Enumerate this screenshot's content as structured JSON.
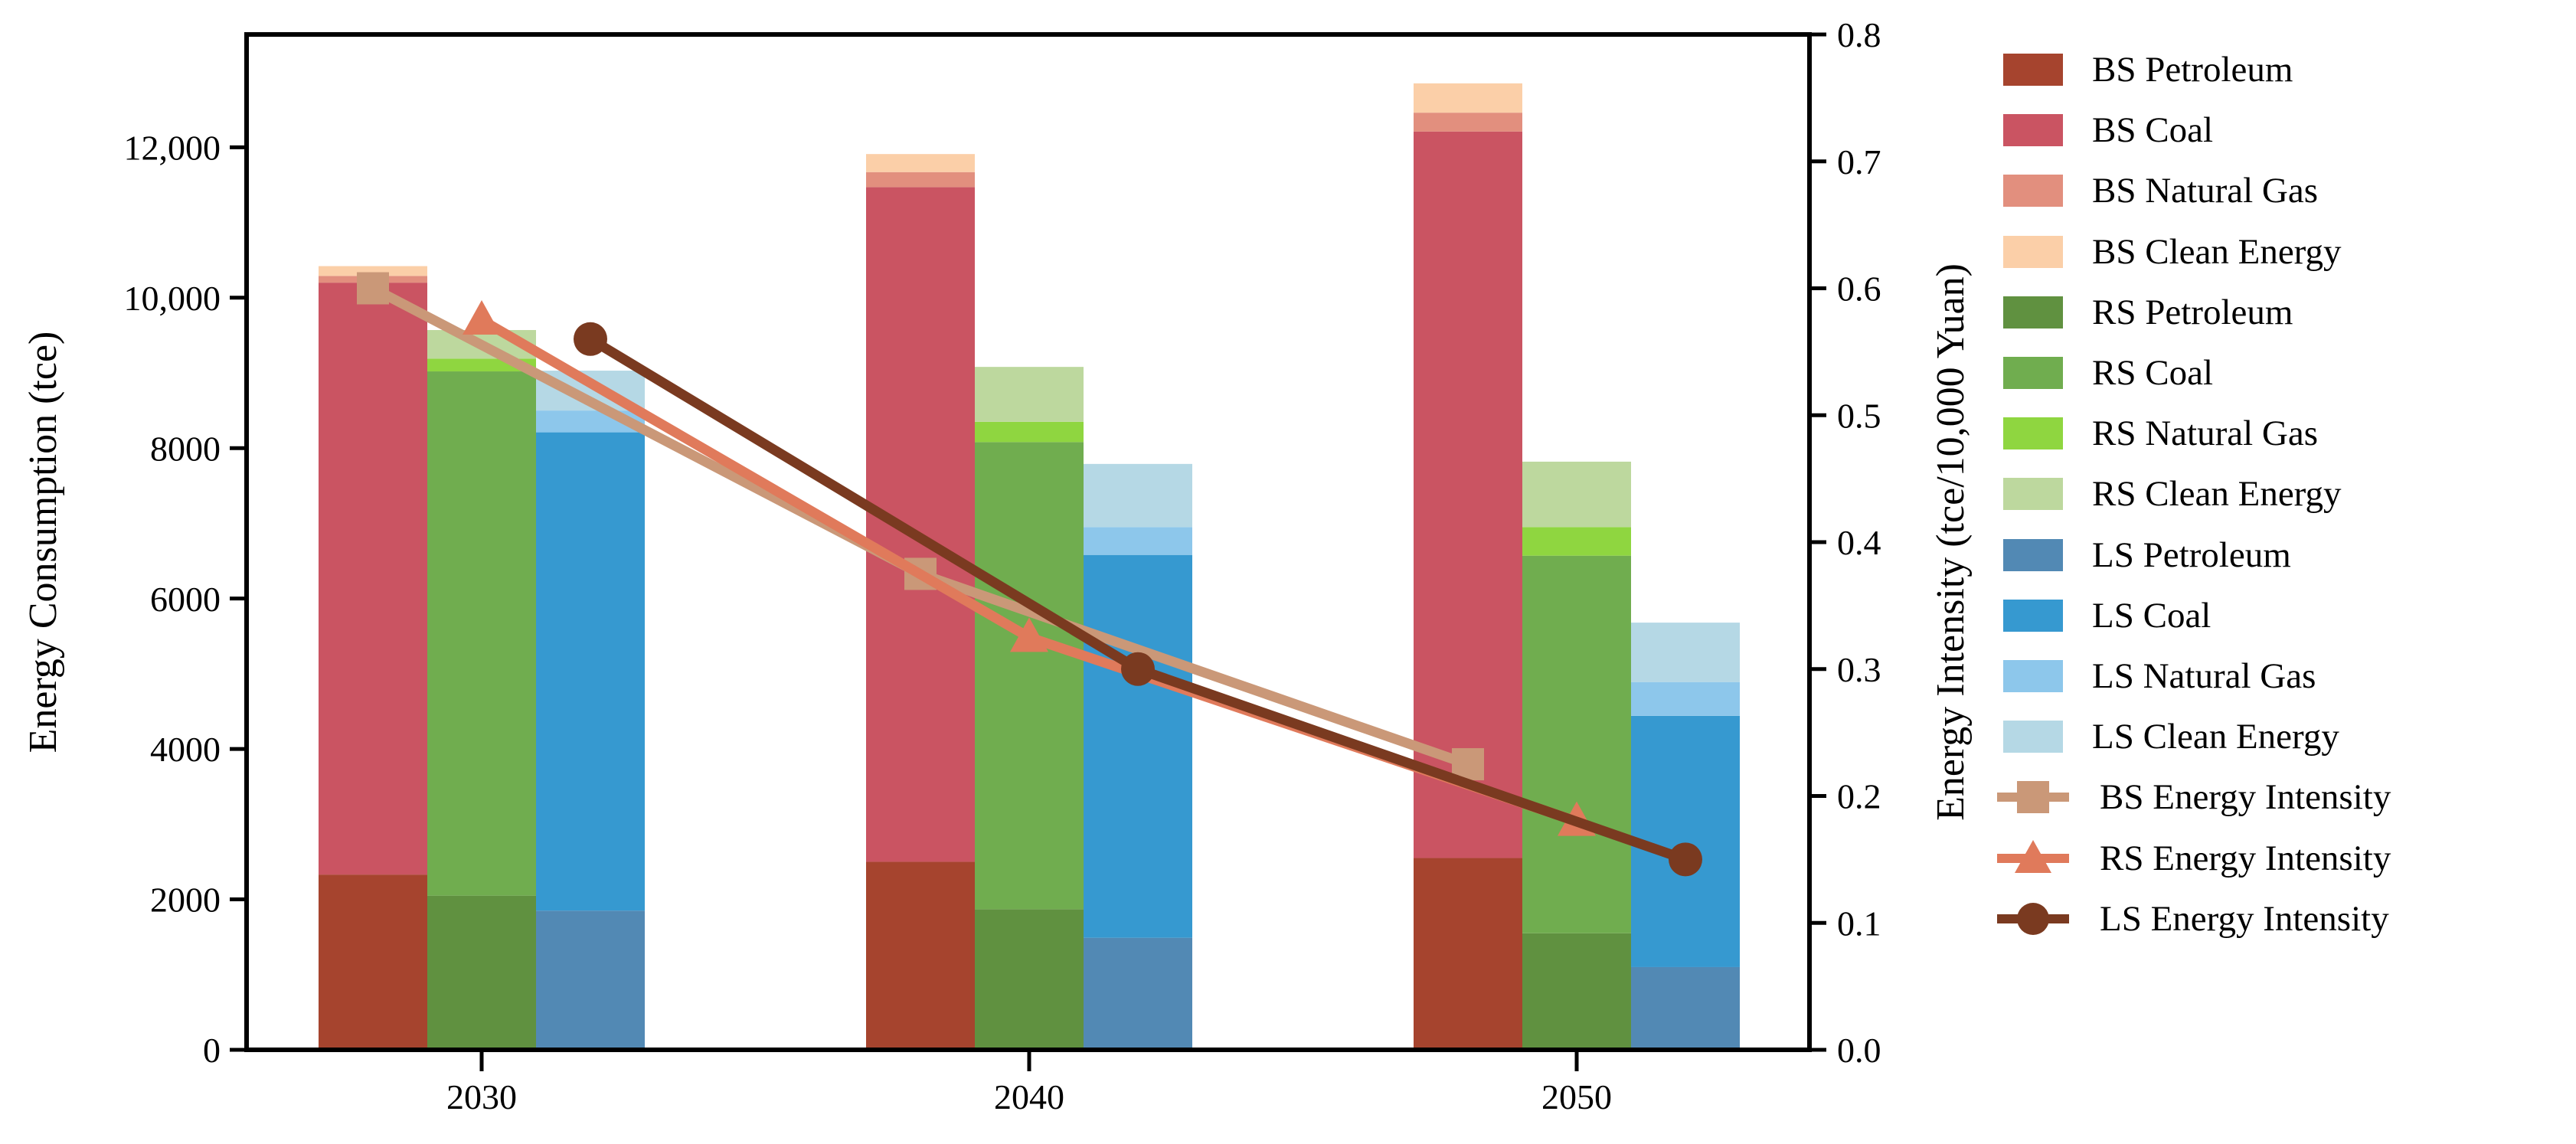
{
  "figure_type": "stacked bar chart with intensity lines",
  "axes": {
    "left": {
      "label": "Energy Consumption (tce)"
    },
    "right": {
      "label": "Energy Intensity (tce/10,000 Yuan)"
    },
    "x": {
      "label": ""
    }
  },
  "chart_data": {
    "type": "bar",
    "subtype": "stacked-bars-plus-lines",
    "categories": [
      "2030",
      "2040",
      "2050"
    ],
    "left_axis": {
      "label": "Energy Consumption (tce)",
      "ylim": [
        0,
        13500
      ],
      "ticks": [
        {
          "value": 0,
          "label": "0"
        },
        {
          "value": 2000,
          "label": "2000"
        },
        {
          "value": 4000,
          "label": "4000"
        },
        {
          "value": 6000,
          "label": "6000"
        },
        {
          "value": 8000,
          "label": "8000"
        },
        {
          "value": 10000,
          "label": "10,000"
        },
        {
          "value": 12000,
          "label": "12,000"
        }
      ]
    },
    "right_axis": {
      "label": "Energy Intensity (tce/10,000 Yuan)",
      "ylim": [
        0,
        0.8
      ],
      "ticks": [
        {
          "value": 0.0,
          "label": "0.0"
        },
        {
          "value": 0.1,
          "label": "0.1"
        },
        {
          "value": 0.2,
          "label": "0.2"
        },
        {
          "value": 0.3,
          "label": "0.3"
        },
        {
          "value": 0.4,
          "label": "0.4"
        },
        {
          "value": 0.5,
          "label": "0.5"
        },
        {
          "value": 0.6,
          "label": "0.6"
        },
        {
          "value": 0.7,
          "label": "0.7"
        },
        {
          "value": 0.8,
          "label": "0.8"
        }
      ]
    },
    "grid": false,
    "legend_position": "right-outside",
    "bar_scenarios": [
      {
        "id": "BS",
        "stack": [
          {
            "name": "BS Petroleum",
            "color": "#a6442e",
            "values": [
              2330,
              2500,
              2550
            ]
          },
          {
            "name": "BS Coal",
            "color": "#ca5462",
            "values": [
              7870,
              8970,
              9660
            ]
          },
          {
            "name": "BS Natural Gas",
            "color": "#e28f7e",
            "values": [
              90,
              200,
              250
            ]
          },
          {
            "name": "BS Clean Energy",
            "color": "#fbcfa8",
            "values": [
              130,
              240,
              390
            ]
          }
        ],
        "totals": [
          10420,
          11910,
          12850
        ]
      },
      {
        "id": "RS",
        "stack": [
          {
            "name": "RS Petroleum",
            "color": "#609140",
            "values": [
              2050,
              1870,
              1550
            ]
          },
          {
            "name": "RS Coal",
            "color": "#70ad4f",
            "values": [
              6970,
              6210,
              5020
            ]
          },
          {
            "name": "RS Natural Gas",
            "color": "#8fd640",
            "values": [
              170,
              270,
              380
            ]
          },
          {
            "name": "RS Clean Energy",
            "color": "#bdd89e",
            "values": [
              380,
              730,
              870
            ]
          }
        ],
        "totals": [
          9570,
          9080,
          7820
        ]
      },
      {
        "id": "LS",
        "stack": [
          {
            "name": "LS Petroleum",
            "color": "#5289b4",
            "values": [
              1850,
              1490,
              1100
            ]
          },
          {
            "name": "LS Coal",
            "color": "#3699d0",
            "values": [
              6360,
              5090,
              3340
            ]
          },
          {
            "name": "LS Natural Gas",
            "color": "#8dc7eb",
            "values": [
              290,
              370,
              450
            ]
          },
          {
            "name": "LS Clean Energy",
            "color": "#b5d8e5",
            "values": [
              530,
              840,
              790
            ]
          }
        ],
        "totals": [
          9030,
          7790,
          5680
        ]
      }
    ],
    "line_series": [
      {
        "name": "BS Energy Intensity",
        "color": "#ca9878",
        "marker": "square",
        "values": [
          0.6,
          0.375,
          0.225
        ]
      },
      {
        "name": "RS Energy Intensity",
        "color": "#e07a5b",
        "marker": "triangle",
        "values": [
          0.575,
          0.325,
          0.18
        ]
      },
      {
        "name": "LS Energy Intensity",
        "color": "#7a3a20",
        "marker": "circle",
        "values": [
          0.56,
          0.3,
          0.15
        ]
      }
    ]
  },
  "legend": {
    "items": [
      {
        "label": "BS Petroleum",
        "type": "patch",
        "color": "#a6442e"
      },
      {
        "label": "BS Coal",
        "type": "patch",
        "color": "#ca5462"
      },
      {
        "label": "BS Natural Gas",
        "type": "patch",
        "color": "#e28f7e"
      },
      {
        "label": "BS Clean Energy",
        "type": "patch",
        "color": "#fbcfa8"
      },
      {
        "label": "RS Petroleum",
        "type": "patch",
        "color": "#609140"
      },
      {
        "label": "RS Coal",
        "type": "patch",
        "color": "#70ad4f"
      },
      {
        "label": "RS Natural Gas",
        "type": "patch",
        "color": "#8fd640"
      },
      {
        "label": "RS Clean Energy",
        "type": "patch",
        "color": "#bdd89e"
      },
      {
        "label": "LS Petroleum",
        "type": "patch",
        "color": "#5289b4"
      },
      {
        "label": "LS Coal",
        "type": "patch",
        "color": "#3699d0"
      },
      {
        "label": "LS Natural Gas",
        "type": "patch",
        "color": "#8dc7eb"
      },
      {
        "label": "LS Clean Energy",
        "type": "patch",
        "color": "#b5d8e5"
      },
      {
        "label": "BS Energy Intensity",
        "type": "line",
        "color": "#ca9878",
        "marker": "square"
      },
      {
        "label": "RS Energy Intensity",
        "type": "line",
        "color": "#e07a5b",
        "marker": "triangle"
      },
      {
        "label": "LS Energy Intensity",
        "type": "line",
        "color": "#7a3a20",
        "marker": "circle"
      }
    ]
  }
}
